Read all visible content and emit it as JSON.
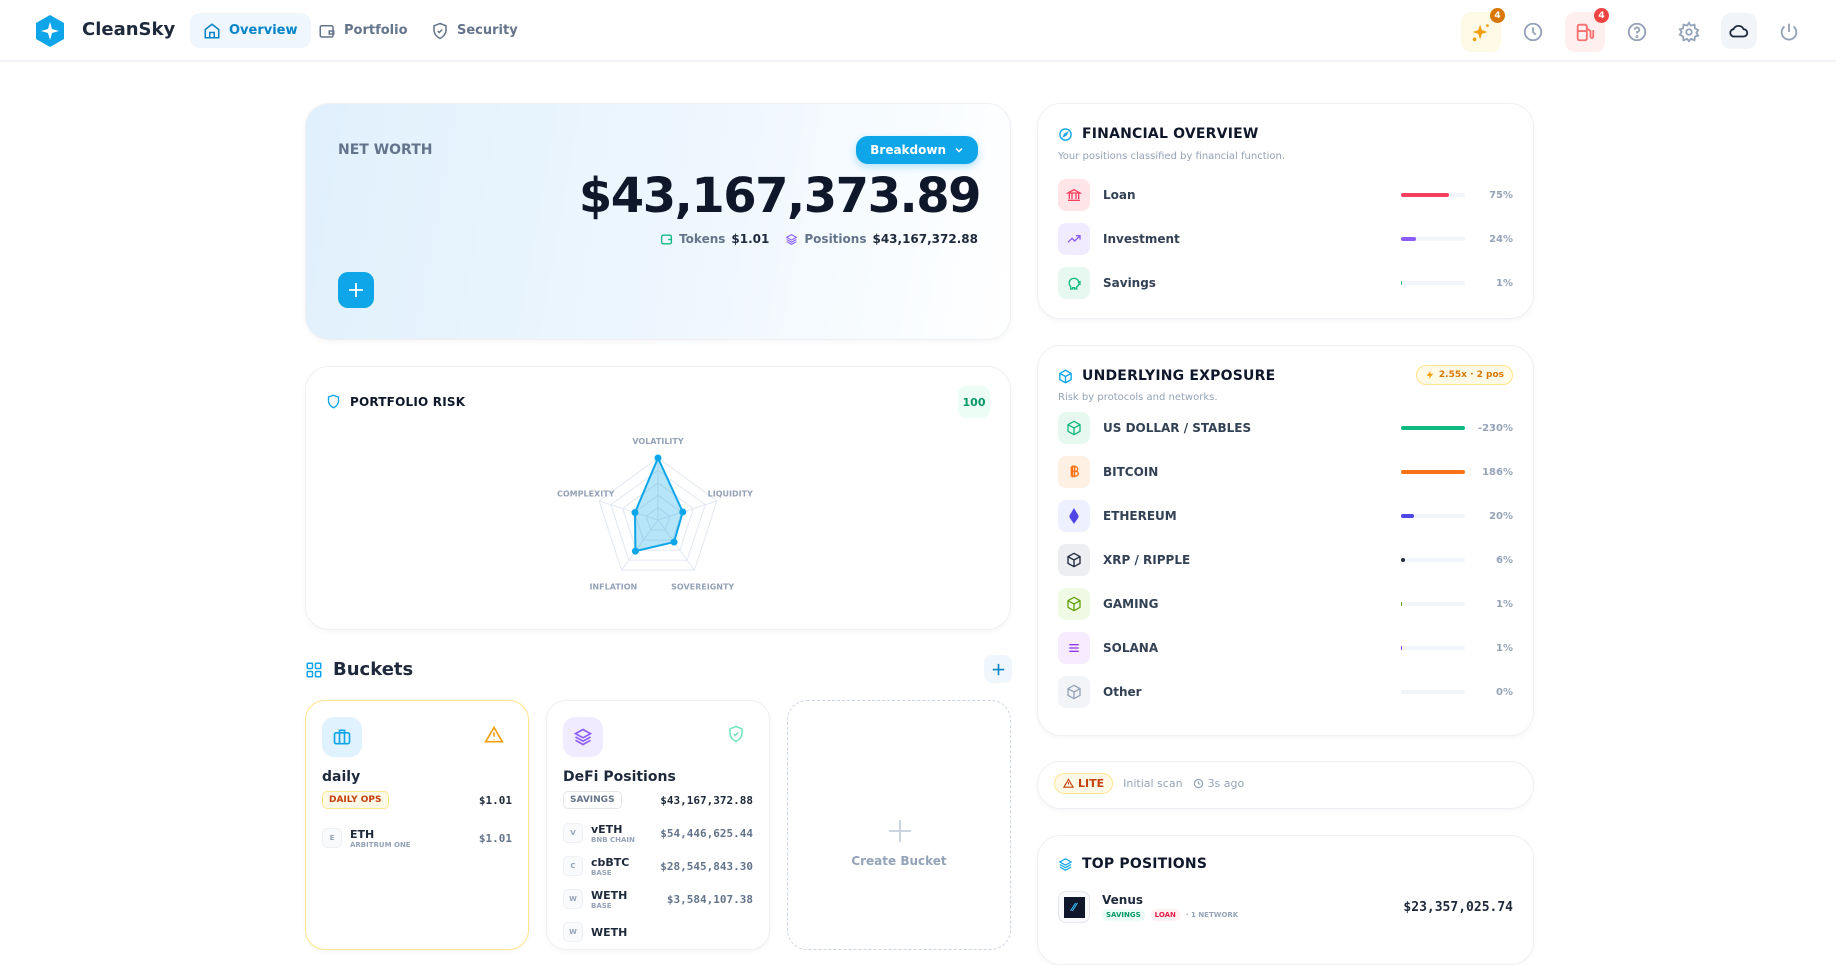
{
  "app": {
    "name": "CleanSky",
    "accent": "#0ea5e9"
  },
  "nav": [
    {
      "label": "Overview",
      "icon": "home-icon",
      "active": true
    },
    {
      "label": "Portfolio",
      "icon": "wallet-icon"
    },
    {
      "label": "Security",
      "icon": "shield-icon"
    }
  ],
  "header_actions": {
    "ai_badge": "4",
    "gas_badge": "4"
  },
  "net_worth": {
    "label": "NET WORTH",
    "breakdown_label": "Breakdown",
    "total": "$43,167,373.89",
    "tokens_label": "Tokens",
    "tokens_value": "$1.01",
    "positions_label": "Positions",
    "positions_value": "$43,167,372.88"
  },
  "risk": {
    "title": "PORTFOLIO RISK",
    "score": "100",
    "axes": [
      {
        "label": "VOLATILITY",
        "value": 1.0
      },
      {
        "label": "LIQUIDITY",
        "value": 0.42
      },
      {
        "label": "SOVEREIGNTY",
        "value": 0.44
      },
      {
        "label": "INFLATION",
        "value": 0.62
      },
      {
        "label": "COMPLEXITY",
        "value": 0.39
      }
    ]
  },
  "buckets": {
    "title": "Buckets",
    "create_label": "Create Bucket",
    "items": [
      {
        "name": "daily",
        "tag": "DAILY OPS",
        "total": "$1.01",
        "tokens": [
          {
            "letter": "E",
            "symbol": "ETH",
            "chain": "ARBITRUM ONE",
            "value": "$1.01"
          }
        ]
      },
      {
        "name": "DeFi Positions",
        "tag": "SAVINGS",
        "total": "$43,167,372.88",
        "tokens": [
          {
            "letter": "V",
            "symbol": "vETH",
            "chain": "BNB CHAIN",
            "value": "$54,446,625.44"
          },
          {
            "letter": "C",
            "symbol": "cbBTC",
            "chain": "BASE",
            "value": "$28,545,843.30"
          },
          {
            "letter": "W",
            "symbol": "WETH",
            "chain": "BASE",
            "value": "$3,584,107.38"
          },
          {
            "letter": "W",
            "symbol": "WETH",
            "chain": "",
            "value": ""
          }
        ]
      }
    ]
  },
  "financial": {
    "title": "FINANCIAL OVERVIEW",
    "subtitle": "Your positions classified by financial function.",
    "items": [
      {
        "label": "Loan",
        "pct": "75%",
        "fill": 75,
        "color": "#f43f5e",
        "bg": "#ffe4e8"
      },
      {
        "label": "Investment",
        "pct": "24%",
        "fill": 24,
        "color": "#8b5cf6",
        "bg": "#f1ebff"
      },
      {
        "label": "Savings",
        "pct": "1%",
        "fill": 1,
        "color": "#10b981",
        "bg": "#e6f8ef"
      }
    ]
  },
  "exposure": {
    "title": "UNDERLYING EXPOSURE",
    "subtitle": "Risk by protocols and networks.",
    "badge": "2.55x · 2 pos",
    "items": [
      {
        "label": "US DOLLAR / STABLES",
        "pct": "-230%",
        "fill": 100,
        "color": "#10b981",
        "bg": "#e6f8ef",
        "icon": "cube-icon"
      },
      {
        "label": "BITCOIN",
        "pct": "186%",
        "fill": 100,
        "color": "#f97316",
        "bg": "#fff0e4",
        "icon": "bitcoin-icon"
      },
      {
        "label": "ETHEREUM",
        "pct": "20%",
        "fill": 20,
        "color": "#4f46e5",
        "bg": "#eef0ff",
        "icon": "ethereum-icon"
      },
      {
        "label": "XRP / RIPPLE",
        "pct": "6%",
        "fill": 6,
        "color": "#1e293b",
        "bg": "#eceef1",
        "icon": "cube-icon"
      },
      {
        "label": "GAMING",
        "pct": "1%",
        "fill": 1,
        "color": "#65a30d",
        "bg": "#eff9e4",
        "icon": "cube-icon"
      },
      {
        "label": "SOLANA",
        "pct": "1%",
        "fill": 1,
        "color": "#9333ea",
        "bg": "#f6ebff",
        "icon": "solana-icon"
      },
      {
        "label": "Other",
        "pct": "0%",
        "fill": 0,
        "color": "#94a3b8",
        "bg": "#f3f4f7",
        "icon": "cube-icon"
      }
    ]
  },
  "scan": {
    "badge": "LITE",
    "label": "Initial scan",
    "time": "3s ago"
  },
  "top_positions": {
    "title": "TOP POSITIONS",
    "items": [
      {
        "name": "Venus",
        "tags": [
          "SAVINGS",
          "LOAN"
        ],
        "networks": "1 NETWORK",
        "value": "$23,357,025.74"
      }
    ]
  }
}
